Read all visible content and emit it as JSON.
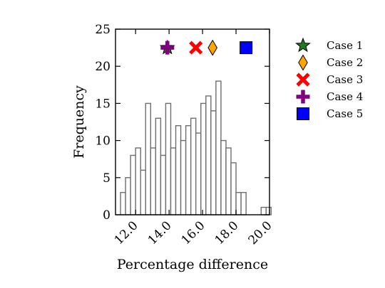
{
  "chart_data": {
    "type": "bar",
    "title": "",
    "xlabel": "Percentage difference",
    "ylabel": "Frequency",
    "xlim": [
      10.8,
      20.0
    ],
    "ylim": [
      0,
      25
    ],
    "x_ticks": [
      12.0,
      14.0,
      16.0,
      18.0,
      20.0
    ],
    "x_tick_labels": [
      "12.0",
      "14.0",
      "16.0",
      "18.0",
      "20.0"
    ],
    "y_ticks": [
      0,
      5,
      10,
      15,
      20,
      25
    ],
    "y_tick_labels": [
      "0",
      "5",
      "10",
      "15",
      "20",
      "25"
    ],
    "grid": false,
    "legend_position": "outside-right",
    "histogram": {
      "bin_width": 0.3,
      "bin_starts": [
        11.1,
        11.4,
        11.7,
        12.0,
        12.3,
        12.6,
        12.9,
        13.2,
        13.5,
        13.8,
        14.1,
        14.4,
        14.7,
        15.0,
        15.3,
        15.6,
        15.9,
        16.2,
        16.5,
        16.8,
        17.1,
        17.4,
        17.7,
        18.0,
        18.3,
        18.6,
        18.9,
        19.2,
        19.5,
        19.8
      ],
      "counts": [
        3,
        5,
        8,
        9,
        6,
        15,
        9,
        13,
        8,
        15,
        9,
        12,
        10,
        12,
        13,
        11,
        15,
        16,
        14,
        18,
        10,
        9,
        7,
        3,
        3,
        0,
        0,
        0,
        1,
        1
      ],
      "fill_color": "#ffffff",
      "edge_color": "#6e6e6e"
    },
    "cases": [
      {
        "name": "Case 1",
        "x": 13.9,
        "y": 22.5,
        "marker": "star",
        "color": "#1e7d1e"
      },
      {
        "name": "Case 2",
        "x": 16.6,
        "y": 22.5,
        "marker": "diamond",
        "color": "#ffa500"
      },
      {
        "name": "Case 3",
        "x": 15.6,
        "y": 22.5,
        "marker": "x",
        "color": "#ff0000"
      },
      {
        "name": "Case 4",
        "x": 13.9,
        "y": 22.5,
        "marker": "plus",
        "color": "#800080"
      },
      {
        "name": "Case 5",
        "x": 18.6,
        "y": 22.5,
        "marker": "square",
        "color": "#0000ff"
      }
    ]
  }
}
